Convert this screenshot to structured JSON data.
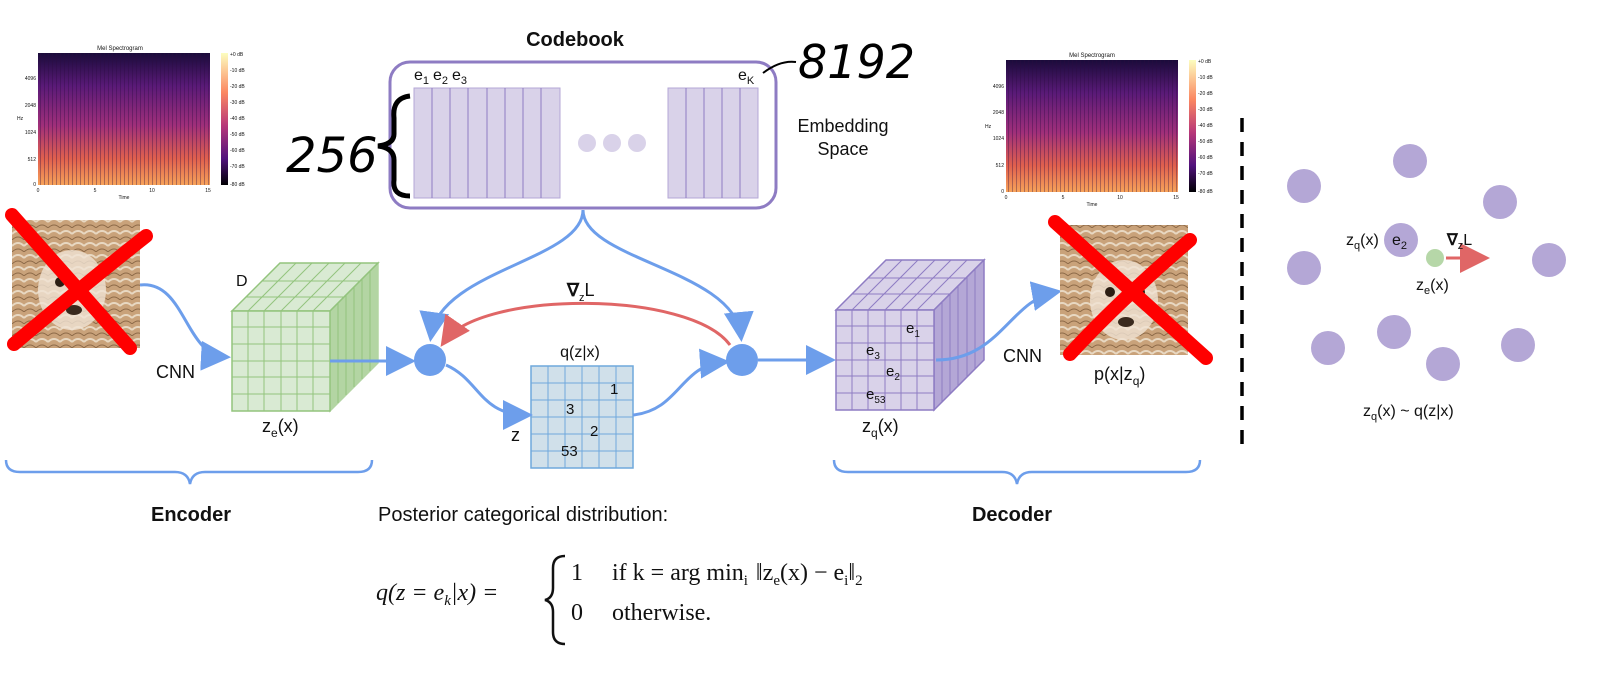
{
  "codebook": {
    "title": "Codebook",
    "embedding_space_line1": "Embedding",
    "embedding_space_line2": "Space",
    "e1": "e",
    "e1_sub": "1",
    "e2": "e",
    "e2_sub": "2",
    "e3": "e",
    "e3_sub": "3",
    "eK": "e",
    "eK_sub": "K",
    "handwritten_K": "8192",
    "handwritten_D": "256"
  },
  "spectrogram_left": {
    "title": "Mel Spectrogram",
    "xlabel": "Time",
    "ylabel": "Hz",
    "y_ticks": [
      "4096",
      "2048",
      "1024",
      "512",
      "0"
    ],
    "x_ticks": [
      "0",
      "5",
      "10",
      "15"
    ],
    "colorbar_ticks": [
      "+0 dB",
      "-10 dB",
      "-20 dB",
      "-30 dB",
      "-40 dB",
      "-50 dB",
      "-60 dB",
      "-70 dB",
      "-80 dB"
    ]
  },
  "spectrogram_right": {
    "title": "Mel Spectrogram",
    "xlabel": "Time",
    "ylabel": "Hz",
    "y_ticks": [
      "4096",
      "2048",
      "1024",
      "512",
      "0"
    ],
    "x_ticks": [
      "0",
      "5",
      "10",
      "15"
    ],
    "colorbar_ticks": [
      "+0 dB",
      "-10 dB",
      "-20 dB",
      "-30 dB",
      "-40 dB",
      "-50 dB",
      "-60 dB",
      "-70 dB",
      "-80 dB"
    ]
  },
  "encoder": {
    "cnn_label": "CNN",
    "depth_label": "D",
    "ze": "z",
    "ze_sub": "e",
    "ze_suffix": "(x)",
    "section_label": "Encoder"
  },
  "gradient": {
    "nabla": "∇",
    "sub": "z",
    "L": "L"
  },
  "posterior_grid": {
    "title": "q(z|x)",
    "z_label": "z",
    "values": [
      "1",
      "3",
      "2",
      "53"
    ]
  },
  "decoder": {
    "zq": "z",
    "zq_sub": "q",
    "zq_suffix": "(x)",
    "cube_labels": [
      {
        "e": "e",
        "sub": "1"
      },
      {
        "e": "e",
        "sub": "3"
      },
      {
        "e": "e",
        "sub": "2"
      },
      {
        "e": "e",
        "sub": "53"
      }
    ],
    "cnn_label": "CNN",
    "px": "p(x|z",
    "px_sub": "q",
    "px_end": ")",
    "section_label": "Decoder"
  },
  "embedding_view": {
    "zq": "z",
    "zq_sub": "q",
    "zq_suffix": "(x)",
    "e2": "e",
    "e2_sub": "2",
    "ze": "z",
    "ze_sub": "e",
    "ze_suffix": "(x)",
    "grad": "∇",
    "grad_sub": "z",
    "grad_L": "L",
    "caption": "z",
    "caption_sub": "q",
    "caption_suffix": "(x) ~ q(z|x)"
  },
  "formula": {
    "heading": "Posterior categorical distribution:",
    "lhs": "q(z = e",
    "lhs_sub": "k",
    "lhs_end": "|x) =",
    "case1_val": "1",
    "case1_cond": "if k = arg min",
    "case1_sub": "i",
    "case1_norm": "‖z",
    "case1_norm_sub": "e",
    "case1_norm_mid": "(x) − e",
    "case1_norm_sub2": "i",
    "case1_norm_end": "‖",
    "case1_norm_sub3": "2",
    "case2_val": "0",
    "case2_cond": "otherwise."
  },
  "colors": {
    "blue_arrow": "#6d9eeb",
    "red_arrow": "#e06666",
    "codebook_border": "#8e7cc3",
    "codebook_fill": "#d9d2e9",
    "encoder_cube": "#d9ead3",
    "encoder_cube_line": "#93c47d",
    "grid_fill": "#d0e0ea",
    "grid_line": "#6fa8dc",
    "node": "#6d9eeb",
    "embed_point": "#b4a7d6",
    "ze_point": "#b6d7a8",
    "cross": "#ff0000"
  }
}
